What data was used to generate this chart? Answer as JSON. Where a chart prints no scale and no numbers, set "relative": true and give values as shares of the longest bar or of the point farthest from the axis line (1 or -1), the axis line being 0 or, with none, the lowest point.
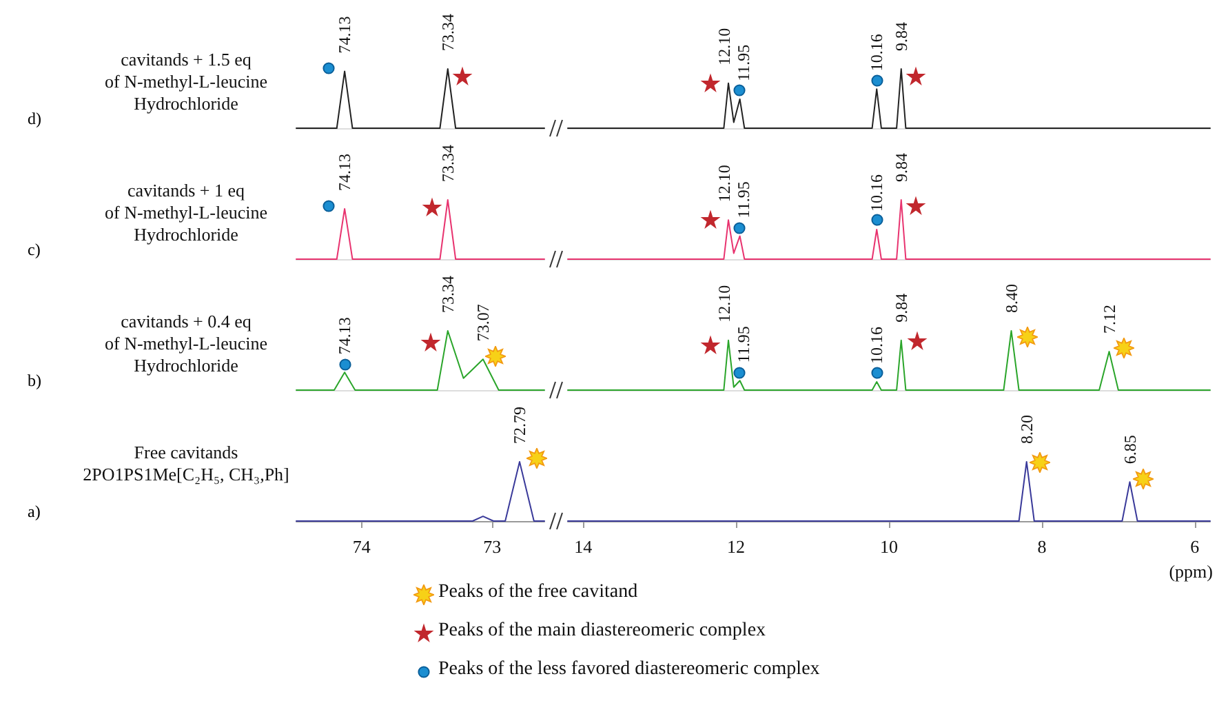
{
  "chart_data": [
    {
      "type": "line",
      "title": "cavitands + 1.5 eq\nof N-methyl-L-leucine\nHydrochloride",
      "annotations": [
        "d)",
        {
          "text": "74.13",
          "x": 74.13,
          "y": 0.96
        },
        {
          "text": "73.34",
          "x": 73.34,
          "y": 1
        }
      ],
      "relative": true,
      "xlim": [
        74.5,
        72.6
      ],
      "xticks": [
        74,
        73
      ],
      "tick_labels": false,
      "series": [
        {
          "color": "#222222",
          "x": [
            74.5,
            74.19,
            74.13,
            74.07,
            73.4,
            73.34,
            73.28,
            72.6
          ],
          "values": [
            0,
            0,
            0.96,
            0,
            0,
            1,
            0,
            0
          ]
        }
      ]
    },
    {
      "type": "line",
      "annotations": [
        {
          "text": "12.10",
          "x": 12.1,
          "y": 0.76
        },
        {
          "text": "11.95",
          "x": 11.95,
          "y": 0.49
        },
        {
          "text": "10.16",
          "x": 10.16,
          "y": 0.66
        },
        {
          "text": "9.84",
          "x": 9.84,
          "y": 1
        }
      ],
      "relative": true,
      "xlim": [
        14.2,
        5.8
      ],
      "xticks": [
        14,
        12,
        10,
        8,
        6
      ],
      "tick_labels": false,
      "series": [
        {
          "color": "#222222",
          "x": [
            14.2,
            12.16,
            12.1,
            12.03,
            11.95,
            11.89,
            10.22,
            10.16,
            10.1,
            9.9,
            9.84,
            9.78,
            5.8
          ],
          "values": [
            0,
            0,
            0.76,
            0.1,
            0.49,
            0,
            0,
            0.66,
            0,
            0,
            1,
            0,
            0
          ]
        }
      ]
    },
    {
      "type": "line",
      "title": "cavitands + 1 eq\nof N-methyl-L-leucine\nHydrochloride",
      "annotations": [
        "c)",
        {
          "text": "74.13",
          "x": 74.13,
          "y": 0.85
        },
        {
          "text": "73.34",
          "x": 73.34,
          "y": 1
        }
      ],
      "relative": true,
      "xlim": [
        74.5,
        72.6
      ],
      "xticks": [
        74,
        73
      ],
      "tick_labels": false,
      "series": [
        {
          "color": "#e8336f",
          "x": [
            74.5,
            74.19,
            74.13,
            74.07,
            73.4,
            73.34,
            73.28,
            72.6
          ],
          "values": [
            0,
            0,
            0.85,
            0,
            0,
            1,
            0,
            0
          ]
        }
      ]
    },
    {
      "type": "line",
      "annotations": [
        {
          "text": "12.10",
          "x": 12.1,
          "y": 0.66
        },
        {
          "text": "11.95",
          "x": 11.95,
          "y": 0.39
        },
        {
          "text": "10.16",
          "x": 10.16,
          "y": 0.5
        },
        {
          "text": "9.84",
          "x": 9.84,
          "y": 1
        }
      ],
      "relative": true,
      "xlim": [
        14.2,
        5.8
      ],
      "xticks": [
        14,
        12,
        10,
        8,
        6
      ],
      "tick_labels": false,
      "series": [
        {
          "color": "#e8336f",
          "x": [
            14.2,
            12.16,
            12.1,
            12.03,
            11.95,
            11.89,
            10.22,
            10.16,
            10.1,
            9.9,
            9.84,
            9.78,
            5.8
          ],
          "values": [
            0,
            0,
            0.66,
            0.1,
            0.39,
            0,
            0,
            0.5,
            0,
            0,
            1,
            0,
            0
          ]
        }
      ]
    },
    {
      "type": "line",
      "title": "cavitands + 0.4 eq\nof N-methyl-L-leucine\nHydrochloride",
      "annotations": [
        "b)",
        {
          "text": "74.13",
          "x": 74.13,
          "y": 0.3
        },
        {
          "text": "73.34",
          "x": 73.34,
          "y": 1
        },
        {
          "text": "73.07",
          "x": 73.07,
          "y": 0.52
        }
      ],
      "relative": true,
      "xlim": [
        74.5,
        72.6
      ],
      "xticks": [
        74,
        73
      ],
      "tick_labels": false,
      "series": [
        {
          "color": "#2aa52a",
          "x": [
            74.5,
            74.21,
            74.13,
            74.05,
            73.42,
            73.34,
            73.22,
            73.07,
            72.95,
            72.6
          ],
          "values": [
            0,
            0,
            0.3,
            0,
            0,
            1,
            0.2,
            0.52,
            0,
            0
          ]
        }
      ]
    },
    {
      "type": "line",
      "annotations": [
        {
          "text": "12.10",
          "x": 12.1,
          "y": 0.84
        },
        {
          "text": "11.95",
          "x": 11.95,
          "y": 0.16
        },
        {
          "text": "10.16",
          "x": 10.16,
          "y": 0.14
        },
        {
          "text": "9.84",
          "x": 9.84,
          "y": 0.84
        },
        {
          "text": "8.40",
          "x": 8.4,
          "y": 1
        },
        {
          "text": "7.12",
          "x": 7.12,
          "y": 0.65
        }
      ],
      "relative": true,
      "xlim": [
        14.2,
        5.8
      ],
      "xticks": [
        14,
        12,
        10,
        8,
        6
      ],
      "tick_labels": false,
      "series": [
        {
          "color": "#2aa52a",
          "x": [
            14.2,
            12.16,
            12.1,
            12.03,
            11.95,
            11.89,
            10.22,
            10.16,
            10.1,
            9.9,
            9.84,
            9.78,
            8.5,
            8.4,
            8.3,
            7.25,
            7.12,
            7.0,
            5.8
          ],
          "values": [
            0,
            0,
            0.84,
            0.05,
            0.16,
            0,
            0,
            0.14,
            0,
            0,
            0.84,
            0,
            0,
            1,
            0,
            0,
            0.65,
            0,
            0
          ]
        }
      ]
    },
    {
      "type": "line",
      "title": "Free cavitands\n2PO1PS1Me[C₂H₅, CH₃,Ph]",
      "annotations": [
        "a)",
        {
          "text": "72.79",
          "x": 72.79,
          "y": 1
        }
      ],
      "relative": true,
      "xlim": [
        74.5,
        72.6
      ],
      "xticks": [
        74,
        73
      ],
      "tick_labels": "x",
      "series": [
        {
          "color": "#3a3a9a",
          "x": [
            74.5,
            73.15,
            73.07,
            72.99,
            72.9,
            72.79,
            72.68,
            72.6
          ],
          "values": [
            0,
            0,
            0.08,
            0,
            0,
            1,
            0,
            0
          ]
        }
      ]
    },
    {
      "type": "line",
      "xlabel": "(ppm)",
      "annotations": [
        {
          "text": "8.20",
          "x": 8.2,
          "y": 1
        },
        {
          "text": "6.85",
          "x": 6.85,
          "y": 0.66
        }
      ],
      "relative": true,
      "xlim": [
        14.2,
        5.8
      ],
      "xticks": [
        14,
        12,
        10,
        8,
        6
      ],
      "tick_labels": "x",
      "series": [
        {
          "color": "#3a3a9a",
          "x": [
            14.2,
            8.3,
            8.2,
            8.1,
            6.95,
            6.85,
            6.75,
            5.8
          ],
          "values": [
            0,
            0,
            1,
            0,
            0,
            0.66,
            0,
            0
          ]
        }
      ]
    },
    {
      "type": "other",
      "annotations": [
        "Peaks of the free cavitand",
        "Peaks of the main diastereomeric complex",
        "Peaks of the less favored diastereomeric complex"
      ]
    }
  ]
}
